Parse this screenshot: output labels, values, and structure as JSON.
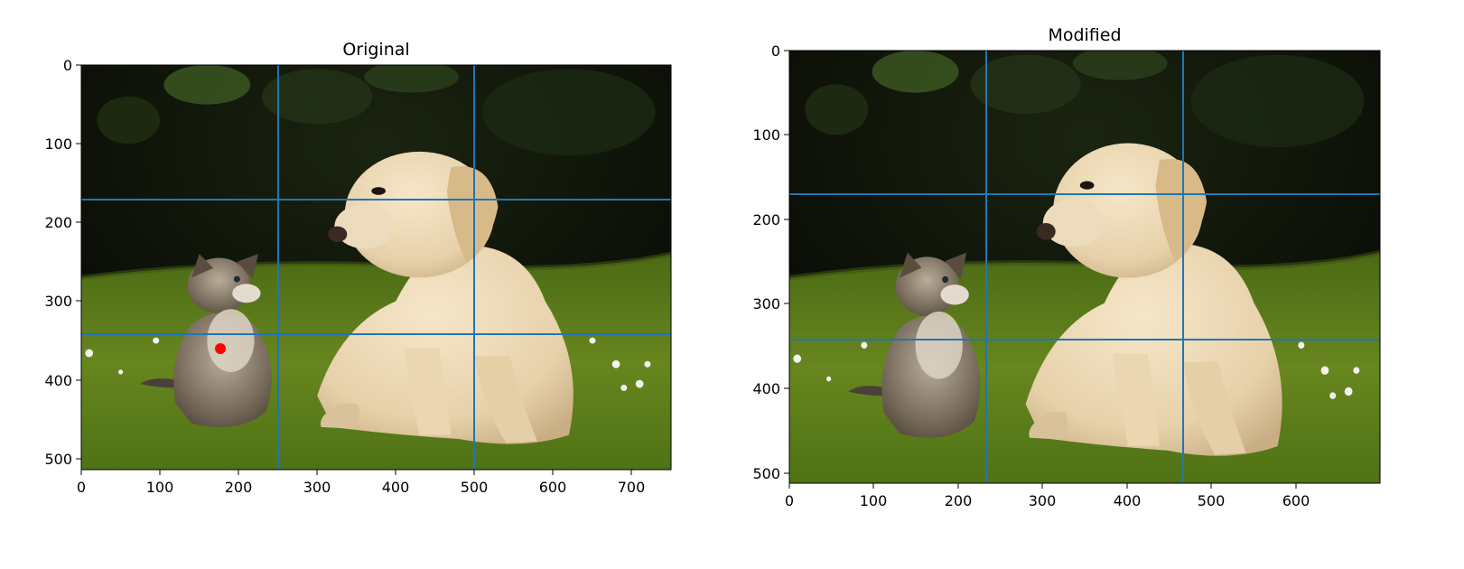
{
  "figure": {
    "panels": [
      {
        "title": "Original",
        "x_ticks": [
          "0",
          "100",
          "200",
          "300",
          "400",
          "500",
          "600",
          "700"
        ],
        "y_ticks": [
          "0",
          "100",
          "200",
          "300",
          "400",
          "500"
        ],
        "image": {
          "width": 750,
          "height": 514,
          "description_colors": {
            "background": "#0b0d07",
            "grass": "#5d7a1e",
            "puppy": "#ead6b3",
            "kitten": "#6c604f"
          }
        },
        "gridlines": {
          "vertical": [
            250,
            500
          ],
          "horizontal": [
            171,
            342
          ],
          "color": "#1f77b4"
        },
        "marker": {
          "x": 177,
          "y": 360,
          "color": "#ff0000"
        }
      },
      {
        "title": "Modified",
        "x_ticks": [
          "0",
          "100",
          "200",
          "300",
          "400",
          "500",
          "600"
        ],
        "y_ticks": [
          "0",
          "100",
          "200",
          "300",
          "400",
          "500"
        ],
        "image": {
          "width": 700,
          "height": 514
        },
        "gridlines": {
          "vertical": [
            233,
            466
          ],
          "horizontal": [
            171,
            342
          ],
          "color": "#1f77b4"
        }
      }
    ]
  }
}
